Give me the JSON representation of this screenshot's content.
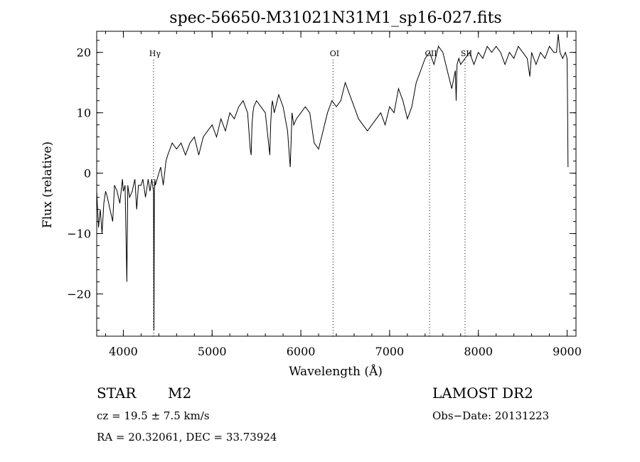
{
  "chart_data": {
    "type": "line",
    "title": "spec-56650-M31021N31M1_sp16-027.fits",
    "xlabel": "Wavelength (Å)",
    "ylabel": "Flux (relative)",
    "xlim": [
      3700,
      9100
    ],
    "ylim": [
      -27,
      23.5
    ],
    "grid": false,
    "xticks": [
      4000,
      5000,
      6000,
      7000,
      8000,
      9000
    ],
    "xtick_labels": [
      "4000",
      "5000",
      "6000",
      "7000",
      "8000",
      "9000"
    ],
    "yticks": [
      -20,
      -10,
      0,
      10,
      20
    ],
    "ytick_labels": [
      "−20",
      "−10",
      "0",
      "10",
      "20"
    ],
    "line_marks": [
      {
        "label": "Hγ",
        "x": 4340
      },
      {
        "label": "OI",
        "x": 6363
      },
      {
        "label": "CII",
        "x": 7450
      },
      {
        "label": "SII",
        "x": 7850
      }
    ],
    "series": [
      {
        "x": [
          3700,
          3720,
          3740,
          3760,
          3780,
          3800,
          3820,
          3850,
          3880,
          3900,
          3930,
          3960,
          3990,
          4000,
          4020,
          4040,
          4050,
          4070,
          4100,
          4130,
          4150,
          4170,
          4200,
          4220,
          4250,
          4280,
          4300,
          4320,
          4340,
          4345,
          4350,
          4355,
          4360,
          4380,
          4400,
          4420,
          4450,
          4480,
          4500,
          4550,
          4600,
          4650,
          4700,
          4750,
          4800,
          4850,
          4900,
          4950,
          5000,
          5050,
          5100,
          5150,
          5200,
          5250,
          5300,
          5350,
          5400,
          5430,
          5440,
          5450,
          5460,
          5470,
          5500,
          5550,
          5600,
          5650,
          5660,
          5670,
          5680,
          5700,
          5750,
          5800,
          5850,
          5870,
          5880,
          5890,
          5900,
          5920,
          5950,
          6000,
          6050,
          6100,
          6150,
          6200,
          6250,
          6300,
          6350,
          6400,
          6450,
          6500,
          6550,
          6600,
          6650,
          6700,
          6750,
          6800,
          6850,
          6900,
          6950,
          7000,
          7050,
          7100,
          7150,
          7200,
          7250,
          7300,
          7350,
          7400,
          7450,
          7500,
          7550,
          7600,
          7650,
          7700,
          7740,
          7750,
          7760,
          7780,
          7800,
          7850,
          7900,
          7950,
          8000,
          8050,
          8100,
          8150,
          8200,
          8250,
          8300,
          8350,
          8400,
          8450,
          8500,
          8550,
          8580,
          8600,
          8650,
          8700,
          8750,
          8800,
          8850,
          8880,
          8900,
          8920,
          8950,
          8980,
          9000,
          9005,
          9010
        ],
        "y": [
          -3,
          -9,
          -6,
          -10,
          -5,
          -3,
          -4,
          -6,
          -8,
          -2,
          -3,
          -5,
          -1,
          -3,
          -2,
          -18,
          -2,
          -4,
          -3,
          -1,
          -6,
          -2,
          -2,
          -1,
          -4,
          -1,
          -3,
          -1,
          -3,
          -26,
          -3,
          -1,
          -2,
          -1,
          0,
          1,
          -2,
          2,
          3,
          5,
          4,
          5,
          3,
          5,
          6,
          3,
          6,
          7,
          8,
          6,
          9,
          7,
          10,
          9,
          11,
          12,
          10,
          4,
          3,
          8,
          10,
          11,
          12,
          11,
          10,
          3,
          8,
          11,
          12,
          10,
          13,
          11,
          7,
          3,
          1,
          5,
          10,
          8,
          9,
          10,
          11,
          10,
          5,
          4,
          7,
          10,
          12,
          11,
          12,
          15,
          13,
          11,
          9,
          8,
          7,
          8,
          9,
          10,
          8,
          11,
          10,
          14,
          12,
          9,
          11,
          15,
          17,
          19,
          20,
          18,
          21,
          20,
          17,
          14,
          17,
          12,
          18,
          19,
          18,
          19,
          20,
          18,
          20,
          19,
          21,
          20,
          21,
          20,
          18,
          20,
          19,
          21,
          20,
          19,
          16,
          20,
          18,
          20,
          19,
          21,
          20,
          20,
          23,
          20,
          19,
          20,
          19,
          12,
          1
        ]
      }
    ]
  },
  "info": {
    "object_type": "STAR",
    "subclass": "M2",
    "survey": "LAMOST DR2",
    "cz": "cz = 19.5 ± 7.5 km/s",
    "obs_date": "Obs−Date: 20131223",
    "coords": "RA =  20.32061, DEC =  33.73924"
  }
}
